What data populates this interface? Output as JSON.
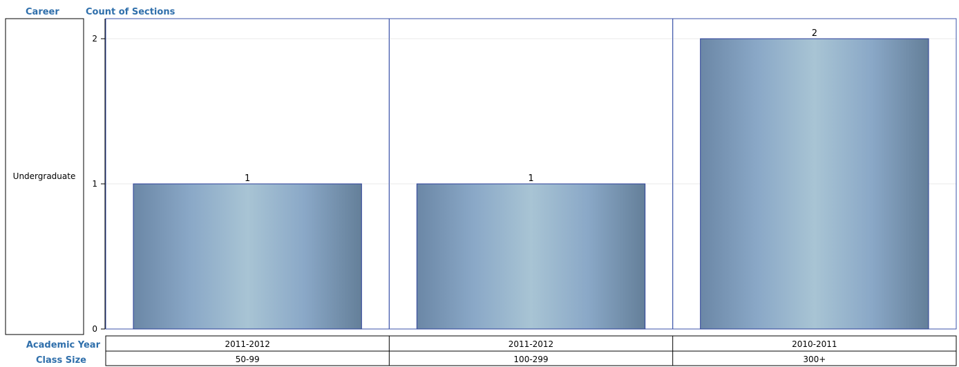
{
  "headers": {
    "row_dimension": "Career",
    "measure": "Count of Sections",
    "column_dimensions": [
      "Academic Year",
      "Class Size"
    ]
  },
  "colors": {
    "header_text": "#2f6fab",
    "panel_border": "#3a52a8",
    "bar_border": "#2b3f99",
    "bar_gradient": [
      "#6b87a6",
      "#8aa8c7",
      "#a8c4d4",
      "#8aa8c7",
      "#647f99"
    ],
    "gridline": "#e8e8e8"
  },
  "chart_data": {
    "type": "bar",
    "row_label": "Undergraduate",
    "ylim": [
      0,
      2
    ],
    "yticks": [
      0,
      1,
      2
    ],
    "grid": true,
    "panels": [
      {
        "academic_year": "2011-2012",
        "class_size": "50-99",
        "value": 1
      },
      {
        "academic_year": "2011-2012",
        "class_size": "100-299",
        "value": 1
      },
      {
        "academic_year": "2010-2011",
        "class_size": "300+",
        "value": 2
      }
    ]
  }
}
